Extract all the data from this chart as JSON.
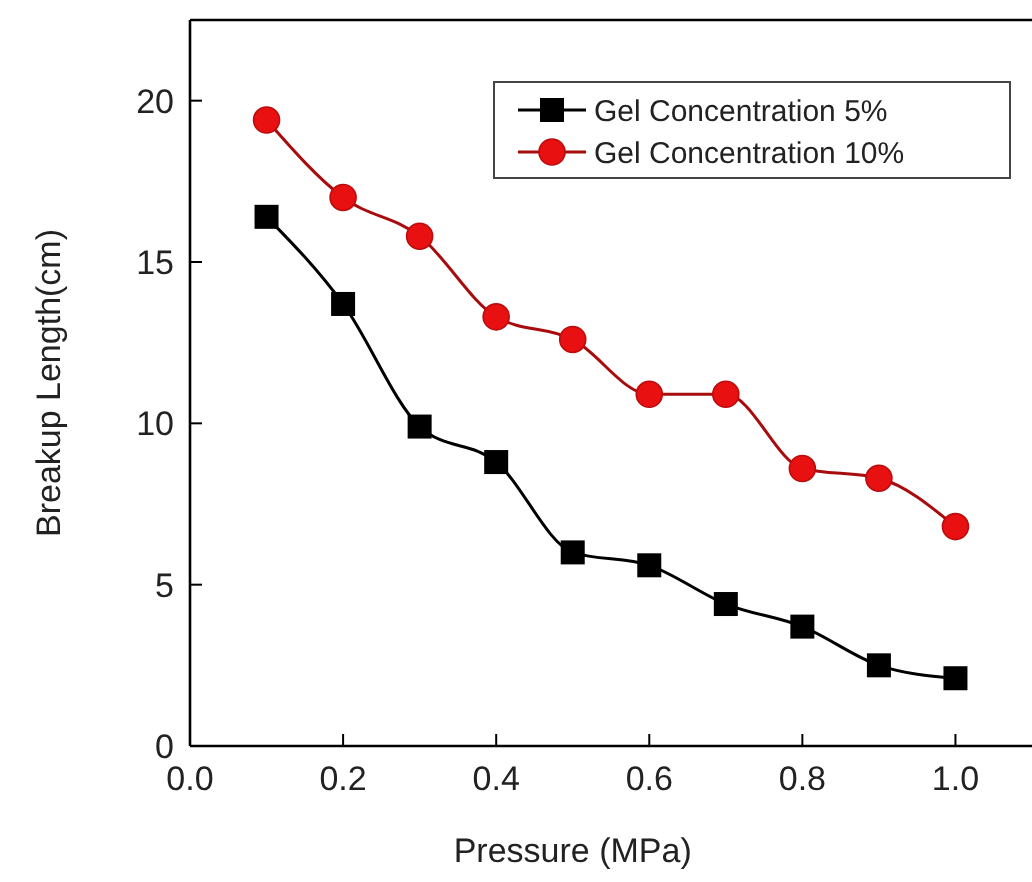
{
  "chart_data": {
    "type": "line",
    "xlabel": "Pressure (MPa)",
    "ylabel": "Breakup Length(cm)",
    "x": [
      0.1,
      0.2,
      0.3,
      0.4,
      0.5,
      0.6,
      0.7,
      0.8,
      0.9,
      1.0
    ],
    "series": [
      {
        "name": "Gel Concentration 5%",
        "color": "#000000",
        "marker": "square",
        "values": [
          16.4,
          13.7,
          9.9,
          8.8,
          6.0,
          5.6,
          4.4,
          3.7,
          2.5,
          2.1
        ]
      },
      {
        "name": "Gel Concentration 10%",
        "color": "#e81010",
        "marker": "circle",
        "values": [
          19.4,
          17.0,
          15.8,
          13.3,
          12.6,
          10.9,
          10.9,
          8.6,
          8.3,
          6.8
        ]
      }
    ],
    "xlim": [
      0,
      1.1
    ],
    "xticks": [
      {
        "value": 0,
        "label": "0.0"
      },
      0.2,
      0.4,
      0.6,
      0.8,
      {
        "value": 1,
        "label": "1.0"
      }
    ],
    "ylim": [
      0,
      22.5
    ],
    "yticks": [
      0,
      5,
      10,
      15,
      20
    ],
    "grid": false,
    "legend": "top right",
    "line_style": "solid"
  }
}
